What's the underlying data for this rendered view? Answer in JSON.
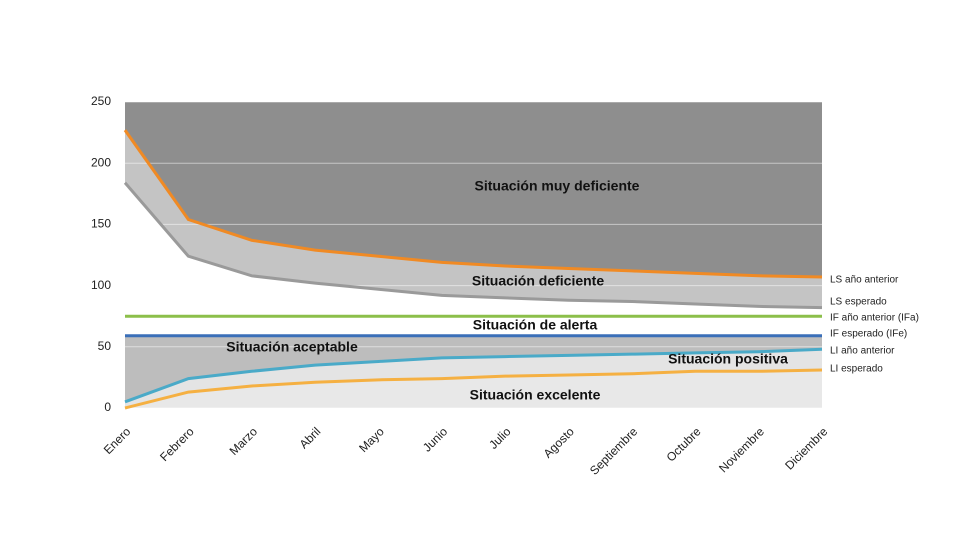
{
  "chart_data": {
    "type": "line",
    "categories": [
      "Enero",
      "Febrero",
      "Marzo",
      "Abril",
      "Mayo",
      "Junio",
      "Julio",
      "Agosto",
      "Septiembre",
      "Octubre",
      "Noviembre",
      "Diciembre"
    ],
    "series": [
      {
        "name": "LS año anterior",
        "color": "#f08a24",
        "values": [
          227,
          154,
          137,
          129,
          124,
          119,
          116,
          114,
          112,
          110,
          108,
          107
        ]
      },
      {
        "name": "LS esperado",
        "color": "#9a9a9a",
        "values": [
          184,
          124,
          108,
          102,
          97,
          92,
          90,
          88,
          87,
          85,
          83,
          82
        ]
      },
      {
        "name": "IF año anterior (IFa)",
        "color": "#8cbf4a",
        "values": [
          75,
          75,
          75,
          75,
          75,
          75,
          75,
          75,
          75,
          75,
          75,
          75
        ]
      },
      {
        "name": "IF esperado (IFe)",
        "color": "#3a6fb8",
        "values": [
          59,
          59,
          59,
          59,
          59,
          59,
          59,
          59,
          59,
          59,
          59,
          59
        ]
      },
      {
        "name": "LI año anterior",
        "color": "#4aaac8",
        "values": [
          5,
          24,
          30,
          35,
          38,
          41,
          42,
          43,
          44,
          45,
          46,
          48
        ]
      },
      {
        "name": "LI esperado",
        "color": "#f5b042",
        "values": [
          0,
          13,
          18,
          21,
          23,
          24,
          26,
          27,
          28,
          30,
          30,
          31
        ]
      }
    ],
    "annotations": [
      "Situación muy deficiente",
      "Situación deficiente",
      "Situación de alerta",
      "Situación aceptable",
      "Situación positiva",
      "Situación excelente"
    ],
    "ylim": [
      0,
      250
    ],
    "yticks": [
      0,
      50,
      100,
      150,
      200,
      250
    ],
    "grid": true
  }
}
